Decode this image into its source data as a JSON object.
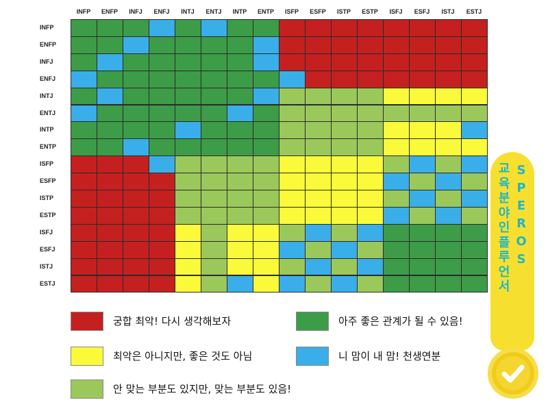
{
  "chart_data": {
    "type": "heatmap",
    "title": "",
    "columns": [
      "INFP",
      "ENFP",
      "INFJ",
      "ENFJ",
      "INTJ",
      "ENTJ",
      "INTP",
      "ENTP",
      "ISFP",
      "ESFP",
      "ISTP",
      "ESTP",
      "ISFJ",
      "ESFJ",
      "ISTJ",
      "ESTJ"
    ],
    "rows": [
      "INFP",
      "ENFP",
      "INFJ",
      "ENFJ",
      "INTJ",
      "ENTJ",
      "INTP",
      "ENTP",
      "ISFP",
      "ESFP",
      "ISTP",
      "ESTP",
      "ISFJ",
      "ESFJ",
      "ISTJ",
      "ESTJ"
    ],
    "categories": {
      "R": {
        "label": "궁합 최악! 다시 생각해보자",
        "color": "#c42020"
      },
      "G": {
        "label": "아주 좋은 관계가 될 수 있음!",
        "color": "#3c9c48"
      },
      "Y": {
        "label": "최악은 아니지만, 좋은 것도 아님",
        "color": "#fafa3a"
      },
      "B": {
        "label": "니 맘이 내 맘! 천생연분",
        "color": "#3aaee8"
      },
      "L": {
        "label": "안 맞는 부분도 있지만, 맞는 부분도 있음!",
        "color": "#9bc85a"
      }
    },
    "values": [
      "GGGBGBGGRRRRRRRR",
      "GGBGGGGBRRRRRRRR",
      "GBGGGGGBRRRRRRRR",
      "BGGGGGGGBRRRRRRR",
      "GBGGGGGBLLLLYYYY",
      "BGGGGGBGLLLLLLLL",
      "GGGGBGGGLLLLYYYB",
      "GGBGGGGGLLLLYYYY",
      "RRRBLLLLYYYYLBLB",
      "RRRRLLLLYYYYBLBL",
      "RRRRLLLLYYYYLBLB",
      "RRRRLLLLYYYYBLBL",
      "RRRRYLYYLBLBGGGG",
      "RRRRYLYYBLBLGGGG",
      "RRRRYLYYLBLBGGGG",
      "RRRRYLBYBLBLGGGG"
    ],
    "legend_order": [
      "R",
      "G",
      "Y",
      "B",
      "L"
    ],
    "grid": true
  },
  "promo": {
    "col1": [
      "교",
      "육",
      "분",
      "야",
      "인",
      "플",
      "루",
      "언",
      "서"
    ],
    "col2": [
      "S",
      "P",
      "E",
      "R",
      "O",
      "S"
    ],
    "text_color": "#1eb6c9",
    "bg_color": "#f7df2f"
  },
  "icons": {
    "badge": "check-icon"
  }
}
